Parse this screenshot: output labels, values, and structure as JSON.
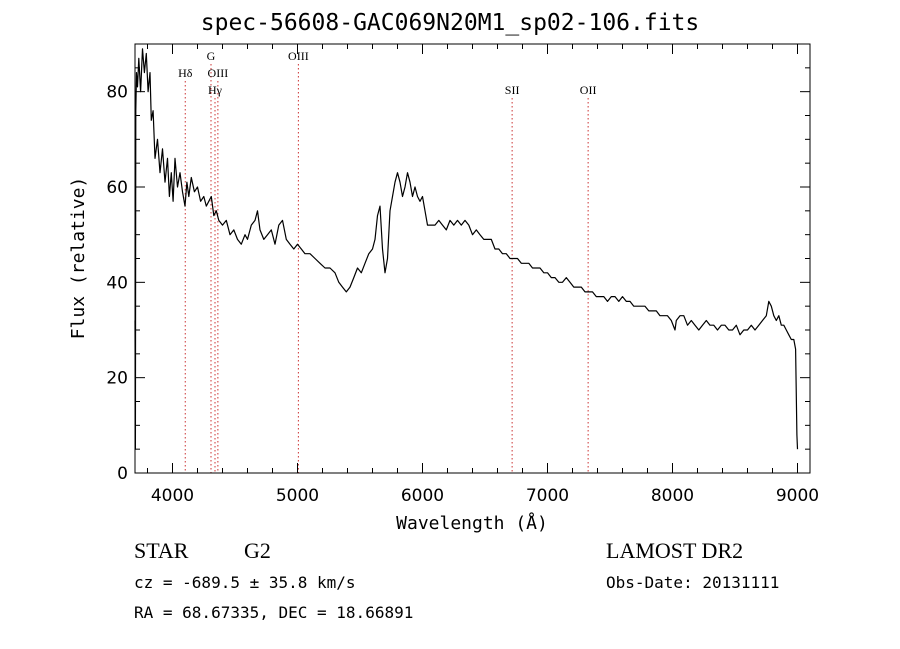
{
  "header": {
    "title": "spec-56608-GAC069N20M1_sp02-106.fits"
  },
  "info": {
    "object_class": "STAR",
    "subclass": "G2",
    "survey": "LAMOST DR2",
    "cz_text": "cz = -689.5 ± 35.8 km/s",
    "obs_date_text": "Obs-Date: 20131111",
    "radec_text": "RA =  68.67335, DEC =  18.66891"
  },
  "chart_data": {
    "type": "line",
    "title": "spec-56608-GAC069N20M1_sp02-106.fits",
    "xlabel": "Wavelength (Å)",
    "ylabel": "Flux (relative)",
    "xlim": [
      3700,
      9100
    ],
    "ylim": [
      0,
      90
    ],
    "x_ticks": [
      4000,
      5000,
      6000,
      7000,
      8000,
      9000
    ],
    "y_ticks": [
      0,
      20,
      40,
      60,
      80
    ],
    "grid": false,
    "line_color": "#000000",
    "marker_color": "#cc3333",
    "spectral_lines": [
      {
        "label": "Hδ",
        "wavelength": 4102,
        "row": 1
      },
      {
        "label": "G",
        "wavelength": 4308,
        "row": 0
      },
      {
        "label": "OIII",
        "wavelength": 4363,
        "row": 1
      },
      {
        "label": "Hγ",
        "wavelength": 4340,
        "row": 2
      },
      {
        "label": "OIII",
        "wavelength": 5007,
        "row": 0
      },
      {
        "label": "SII",
        "wavelength": 6717,
        "row": 2
      },
      {
        "label": "OII",
        "wavelength": 7325,
        "row": 2
      }
    ],
    "series": [
      {
        "values": [
          [
            3700,
            32
          ],
          [
            3703,
            5
          ],
          [
            3706,
            76
          ],
          [
            3712,
            84
          ],
          [
            3720,
            81
          ],
          [
            3730,
            87
          ],
          [
            3745,
            80
          ],
          [
            3760,
            89
          ],
          [
            3775,
            84
          ],
          [
            3790,
            88
          ],
          [
            3805,
            80
          ],
          [
            3820,
            84
          ],
          [
            3830,
            74
          ],
          [
            3845,
            76
          ],
          [
            3860,
            66
          ],
          [
            3880,
            70
          ],
          [
            3900,
            63
          ],
          [
            3920,
            68
          ],
          [
            3940,
            61
          ],
          [
            3960,
            66
          ],
          [
            3975,
            58
          ],
          [
            3990,
            63
          ],
          [
            4005,
            57
          ],
          [
            4020,
            66
          ],
          [
            4040,
            60
          ],
          [
            4060,
            63
          ],
          [
            4080,
            59
          ],
          [
            4100,
            56
          ],
          [
            4115,
            61
          ],
          [
            4130,
            58
          ],
          [
            4150,
            62
          ],
          [
            4175,
            59
          ],
          [
            4200,
            60
          ],
          [
            4225,
            57
          ],
          [
            4250,
            58
          ],
          [
            4270,
            56
          ],
          [
            4290,
            57
          ],
          [
            4310,
            58
          ],
          [
            4330,
            54
          ],
          [
            4350,
            55
          ],
          [
            4370,
            53
          ],
          [
            4400,
            52
          ],
          [
            4430,
            53
          ],
          [
            4460,
            50
          ],
          [
            4490,
            51
          ],
          [
            4520,
            49
          ],
          [
            4550,
            48
          ],
          [
            4580,
            50
          ],
          [
            4600,
            49
          ],
          [
            4630,
            52
          ],
          [
            4660,
            53
          ],
          [
            4680,
            55
          ],
          [
            4700,
            51
          ],
          [
            4730,
            49
          ],
          [
            4760,
            50
          ],
          [
            4790,
            51
          ],
          [
            4820,
            48
          ],
          [
            4850,
            52
          ],
          [
            4880,
            53
          ],
          [
            4910,
            49
          ],
          [
            4940,
            48
          ],
          [
            4970,
            47
          ],
          [
            5000,
            48
          ],
          [
            5030,
            47
          ],
          [
            5060,
            46
          ],
          [
            5100,
            46
          ],
          [
            5140,
            45
          ],
          [
            5180,
            44
          ],
          [
            5220,
            43
          ],
          [
            5260,
            43
          ],
          [
            5300,
            42
          ],
          [
            5330,
            40
          ],
          [
            5360,
            39
          ],
          [
            5390,
            38
          ],
          [
            5420,
            39
          ],
          [
            5450,
            41
          ],
          [
            5480,
            43
          ],
          [
            5510,
            42
          ],
          [
            5540,
            44
          ],
          [
            5570,
            46
          ],
          [
            5600,
            47
          ],
          [
            5620,
            49
          ],
          [
            5640,
            54
          ],
          [
            5660,
            56
          ],
          [
            5680,
            47
          ],
          [
            5700,
            42
          ],
          [
            5720,
            45
          ],
          [
            5740,
            55
          ],
          [
            5760,
            58
          ],
          [
            5780,
            61
          ],
          [
            5800,
            63
          ],
          [
            5820,
            61
          ],
          [
            5840,
            58
          ],
          [
            5860,
            60
          ],
          [
            5880,
            63
          ],
          [
            5900,
            61
          ],
          [
            5920,
            58
          ],
          [
            5940,
            60
          ],
          [
            5960,
            58
          ],
          [
            5980,
            57
          ],
          [
            6000,
            58
          ],
          [
            6020,
            55
          ],
          [
            6040,
            52
          ],
          [
            6070,
            52
          ],
          [
            6100,
            52
          ],
          [
            6130,
            53
          ],
          [
            6160,
            52
          ],
          [
            6190,
            51
          ],
          [
            6220,
            53
          ],
          [
            6250,
            52
          ],
          [
            6280,
            53
          ],
          [
            6310,
            52
          ],
          [
            6340,
            53
          ],
          [
            6370,
            52
          ],
          [
            6400,
            50
          ],
          [
            6430,
            51
          ],
          [
            6460,
            50
          ],
          [
            6490,
            49
          ],
          [
            6520,
            49
          ],
          [
            6550,
            49
          ],
          [
            6580,
            47
          ],
          [
            6610,
            47
          ],
          [
            6640,
            46
          ],
          [
            6670,
            46
          ],
          [
            6700,
            45
          ],
          [
            6730,
            45
          ],
          [
            6760,
            45
          ],
          [
            6790,
            44
          ],
          [
            6820,
            44
          ],
          [
            6850,
            44
          ],
          [
            6880,
            43
          ],
          [
            6910,
            43
          ],
          [
            6940,
            43
          ],
          [
            6970,
            42
          ],
          [
            7000,
            42
          ],
          [
            7030,
            41
          ],
          [
            7060,
            41
          ],
          [
            7090,
            40
          ],
          [
            7120,
            40
          ],
          [
            7150,
            41
          ],
          [
            7180,
            40
          ],
          [
            7210,
            39
          ],
          [
            7240,
            39
          ],
          [
            7270,
            39
          ],
          [
            7300,
            38
          ],
          [
            7330,
            38
          ],
          [
            7360,
            38
          ],
          [
            7390,
            37
          ],
          [
            7420,
            37
          ],
          [
            7450,
            37
          ],
          [
            7480,
            36
          ],
          [
            7510,
            37
          ],
          [
            7540,
            37
          ],
          [
            7570,
            36
          ],
          [
            7600,
            37
          ],
          [
            7630,
            36
          ],
          [
            7660,
            36
          ],
          [
            7690,
            35
          ],
          [
            7720,
            35
          ],
          [
            7750,
            35
          ],
          [
            7780,
            35
          ],
          [
            7810,
            34
          ],
          [
            7840,
            34
          ],
          [
            7870,
            34
          ],
          [
            7900,
            33
          ],
          [
            7930,
            33
          ],
          [
            7960,
            33
          ],
          [
            7990,
            32
          ],
          [
            8020,
            30
          ],
          [
            8030,
            32
          ],
          [
            8060,
            33
          ],
          [
            8090,
            33
          ],
          [
            8120,
            31
          ],
          [
            8150,
            32
          ],
          [
            8180,
            31
          ],
          [
            8210,
            30
          ],
          [
            8240,
            31
          ],
          [
            8270,
            32
          ],
          [
            8300,
            31
          ],
          [
            8330,
            31
          ],
          [
            8360,
            30
          ],
          [
            8390,
            31
          ],
          [
            8420,
            31
          ],
          [
            8450,
            30
          ],
          [
            8480,
            30
          ],
          [
            8510,
            31
          ],
          [
            8540,
            29
          ],
          [
            8570,
            30
          ],
          [
            8600,
            30
          ],
          [
            8630,
            31
          ],
          [
            8660,
            30
          ],
          [
            8690,
            31
          ],
          [
            8720,
            32
          ],
          [
            8750,
            33
          ],
          [
            8770,
            36
          ],
          [
            8790,
            35
          ],
          [
            8810,
            33
          ],
          [
            8830,
            32
          ],
          [
            8850,
            33
          ],
          [
            8870,
            31
          ],
          [
            8890,
            31
          ],
          [
            8910,
            30
          ],
          [
            8930,
            29
          ],
          [
            8950,
            28
          ],
          [
            8970,
            28
          ],
          [
            8985,
            26
          ],
          [
            8995,
            8
          ],
          [
            9000,
            5
          ]
        ]
      }
    ]
  }
}
